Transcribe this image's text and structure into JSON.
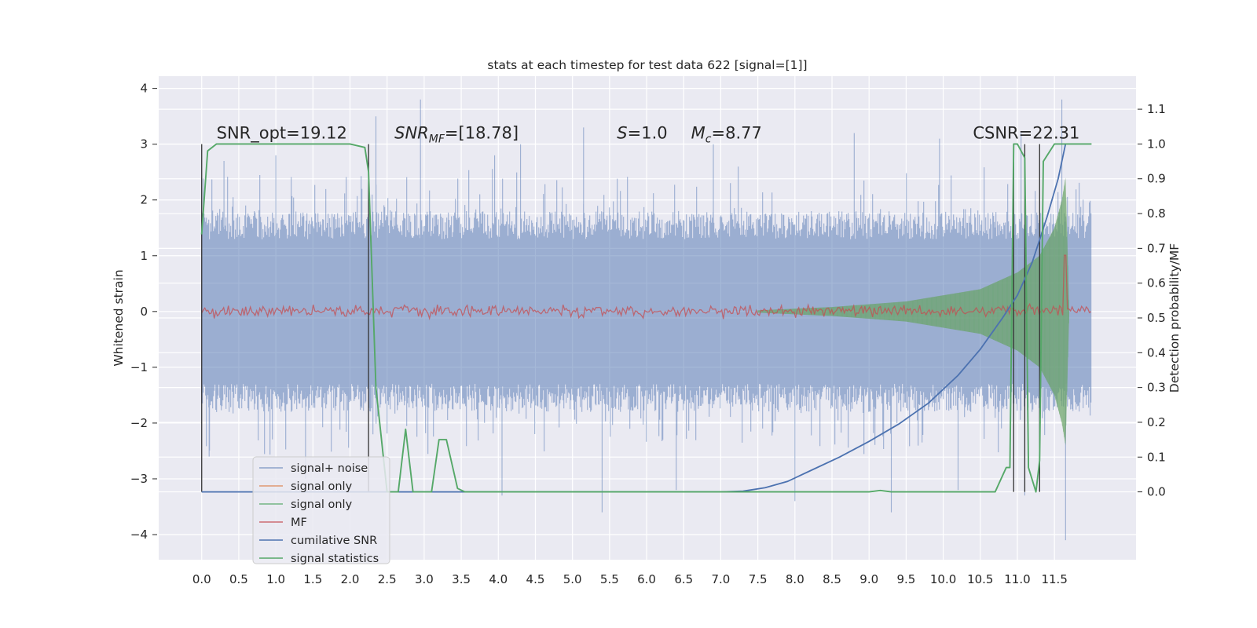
{
  "chart_data": {
    "type": "line",
    "title": "stats at each timestep for test data 622 [signal=[1]]",
    "xlabel": "",
    "ylabel_left": "Whitened strain",
    "ylabel_right": "Detection probability/MF",
    "xlim": [
      -0.58,
      12.6
    ],
    "ylim_left": [
      -4.45,
      4.22
    ],
    "ylim_right": [
      -0.195,
      1.195
    ],
    "x_ticks": [
      "0.0",
      "0.5",
      "1.0",
      "1.5",
      "2.0",
      "2.5",
      "3.0",
      "3.5",
      "4.0",
      "4.5",
      "5.0",
      "5.5",
      "6.0",
      "6.5",
      "7.0",
      "7.5",
      "8.0",
      "8.5",
      "9.0",
      "9.5",
      "10.0",
      "10.5",
      "11.0",
      "11.5"
    ],
    "y_ticks_left": [
      "−4",
      "−3",
      "−2",
      "−1",
      "0",
      "1",
      "2",
      "3",
      "4"
    ],
    "y_ticks_right": [
      "0.0",
      "0.1",
      "0.2",
      "0.3",
      "0.4",
      "0.5",
      "0.6",
      "0.7",
      "0.8",
      "0.9",
      "1.0",
      "1.1"
    ],
    "grid": true,
    "legend_position": "lower-left",
    "background_color": "#eaeaf2",
    "colors": {
      "signal_noise": "#4c72b0",
      "signal_only_orange": "#dd8452",
      "signal_only_green": "#55a868",
      "mf": "#c44e52",
      "cumulative_snr": "#4c72b0",
      "signal_statistics": "#55a868",
      "markers": "#333333"
    },
    "annotations": [
      {
        "text": "SNR_opt=19.12",
        "x": 0.2,
        "y": 3.1
      },
      {
        "text": "SNR_MF=[18.78]",
        "x": 2.6,
        "y": 3.1
      },
      {
        "text": "S=1.0",
        "x": 5.6,
        "y": 3.1
      },
      {
        "text": "M_c=8.77",
        "x": 6.6,
        "y": 3.1
      },
      {
        "text": "CSNR=22.31",
        "x": 10.4,
        "y": 3.1
      }
    ],
    "series": [
      {
        "name": "signal+ noise",
        "axis": "left",
        "style": "noise",
        "x_range": [
          0.0,
          12.0
        ],
        "envelope": [
          [
            0.0,
            1.8
          ],
          [
            12.0,
            1.8
          ]
        ],
        "spikes_up": [
          [
            0.0,
            2.4
          ],
          [
            0.3,
            2.7
          ],
          [
            1.0,
            2.8
          ],
          [
            2.25,
            3.0
          ],
          [
            2.35,
            3.5
          ],
          [
            2.95,
            3.8
          ],
          [
            3.95,
            2.8
          ],
          [
            4.3,
            3.0
          ],
          [
            5.15,
            3.3
          ],
          [
            6.9,
            3.0
          ],
          [
            8.8,
            3.2
          ],
          [
            9.95,
            3.1
          ],
          [
            11.05,
            3.2
          ],
          [
            11.6,
            3.8
          ]
        ],
        "spikes_down": [
          [
            0.1,
            -2.6
          ],
          [
            1.4,
            -3.0
          ],
          [
            4.05,
            -3.3
          ],
          [
            5.4,
            -3.6
          ],
          [
            6.4,
            -3.2
          ],
          [
            8.0,
            -3.4
          ],
          [
            9.3,
            -3.6
          ],
          [
            10.2,
            -3.2
          ],
          [
            11.1,
            -3.3
          ],
          [
            11.65,
            -4.1
          ]
        ]
      },
      {
        "name": "signal only",
        "axis": "left",
        "style": "chirp",
        "envelope": [
          [
            7.5,
            0.02
          ],
          [
            8.5,
            0.08
          ],
          [
            9.5,
            0.18
          ],
          [
            10.5,
            0.4
          ],
          [
            11.0,
            0.7
          ],
          [
            11.3,
            1.0
          ],
          [
            11.5,
            1.5
          ],
          [
            11.6,
            2.0
          ],
          [
            11.65,
            2.4
          ],
          [
            11.7,
            0.0
          ]
        ]
      },
      {
        "name": "signal only",
        "axis": "left",
        "style": "chirp",
        "envelope": [
          [
            7.5,
            0.02
          ],
          [
            8.5,
            0.08
          ],
          [
            9.5,
            0.18
          ],
          [
            10.5,
            0.4
          ],
          [
            11.0,
            0.7
          ],
          [
            11.3,
            1.0
          ],
          [
            11.5,
            1.5
          ],
          [
            11.6,
            2.0
          ],
          [
            11.65,
            2.4
          ],
          [
            11.7,
            0.0
          ]
        ]
      },
      {
        "name": "MF",
        "axis": "right",
        "style": "line",
        "baseline": 0.52,
        "jitter": 0.015,
        "peak": [
          11.65,
          0.68
        ]
      },
      {
        "name": "cumilative SNR",
        "axis": "right",
        "style": "line",
        "x": [
          0.0,
          3.5,
          7.0,
          7.3,
          7.6,
          7.9,
          8.2,
          8.6,
          9.0,
          9.4,
          9.8,
          10.2,
          10.5,
          10.8,
          11.0,
          11.2,
          11.4,
          11.55,
          11.65
        ],
        "y": [
          0.0,
          0.0,
          0.0,
          0.002,
          0.012,
          0.03,
          0.06,
          0.1,
          0.145,
          0.195,
          0.255,
          0.335,
          0.41,
          0.5,
          0.565,
          0.66,
          0.79,
          0.9,
          1.0
        ]
      },
      {
        "name": "signal statistics",
        "axis": "right",
        "style": "line",
        "x": [
          0.0,
          0.08,
          0.2,
          1.0,
          2.0,
          2.2,
          2.25,
          2.35,
          2.5,
          2.65,
          2.75,
          2.85,
          3.1,
          3.2,
          3.3,
          3.45,
          3.55,
          4.0,
          5.0,
          7.0,
          9.0,
          9.15,
          9.3,
          10.5,
          10.7,
          10.85,
          10.9,
          10.95,
          11.0,
          11.1,
          11.15,
          11.25,
          11.3,
          11.35,
          11.5,
          11.6,
          11.7,
          12.0
        ],
        "y": [
          0.74,
          0.98,
          1.0,
          1.0,
          1.0,
          0.99,
          0.92,
          0.3,
          0.0,
          0.0,
          0.18,
          0.0,
          0.0,
          0.15,
          0.15,
          0.01,
          0.0,
          0.0,
          0.0,
          0.0,
          0.0,
          0.004,
          0.0,
          0.0,
          0.0,
          0.07,
          0.07,
          1.0,
          1.0,
          0.96,
          0.07,
          0.0,
          0.09,
          0.95,
          1.0,
          1.0,
          1.0,
          1.0
        ]
      }
    ],
    "markers_x": [
      0.0,
      2.25,
      10.95,
      11.1,
      11.3
    ],
    "legend": [
      "signal+ noise",
      "signal only",
      "signal only",
      "MF",
      "cumilative SNR",
      "signal statistics"
    ]
  }
}
